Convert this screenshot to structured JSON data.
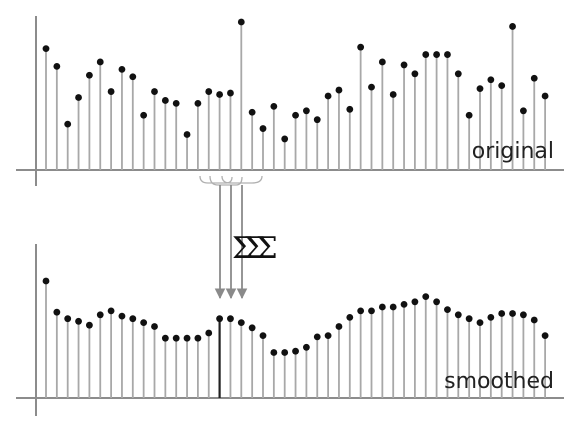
{
  "labels": {
    "top": "original",
    "bottom": "smoothed",
    "operator": "ΣΣΣ"
  },
  "colors": {
    "stem": "#a8a8a8",
    "stem_highlight": "#222222",
    "dot": "#111111",
    "axis": "#8c8c8c",
    "arrow": "#8a8a8a",
    "text": "#222222"
  },
  "chart_data": [
    {
      "type": "stem",
      "label": "original",
      "ylim": [
        0,
        1
      ],
      "values": [
        0.82,
        0.7,
        0.31,
        0.49,
        0.64,
        0.73,
        0.53,
        0.68,
        0.63,
        0.37,
        0.53,
        0.47,
        0.45,
        0.24,
        0.45,
        0.53,
        0.51,
        0.52,
        1.0,
        0.39,
        0.28,
        0.43,
        0.21,
        0.37,
        0.4,
        0.34,
        0.5,
        0.54,
        0.41,
        0.83,
        0.56,
        0.73,
        0.51,
        0.71,
        0.65,
        0.78,
        0.78,
        0.78,
        0.65,
        0.37,
        0.55,
        0.61,
        0.57,
        0.97,
        0.4,
        0.62,
        0.5
      ]
    },
    {
      "type": "stem",
      "label": "smoothed",
      "ylim": [
        0,
        1
      ],
      "highlight_index": 16,
      "values": [
        0.9,
        0.66,
        0.61,
        0.59,
        0.56,
        0.64,
        0.67,
        0.63,
        0.61,
        0.58,
        0.55,
        0.46,
        0.46,
        0.46,
        0.46,
        0.5,
        0.61,
        0.61,
        0.58,
        0.54,
        0.48,
        0.35,
        0.35,
        0.36,
        0.39,
        0.47,
        0.48,
        0.55,
        0.62,
        0.67,
        0.67,
        0.7,
        0.7,
        0.72,
        0.74,
        0.78,
        0.74,
        0.68,
        0.64,
        0.61,
        0.58,
        0.62,
        0.65,
        0.65,
        0.64,
        0.6,
        0.48
      ]
    }
  ]
}
